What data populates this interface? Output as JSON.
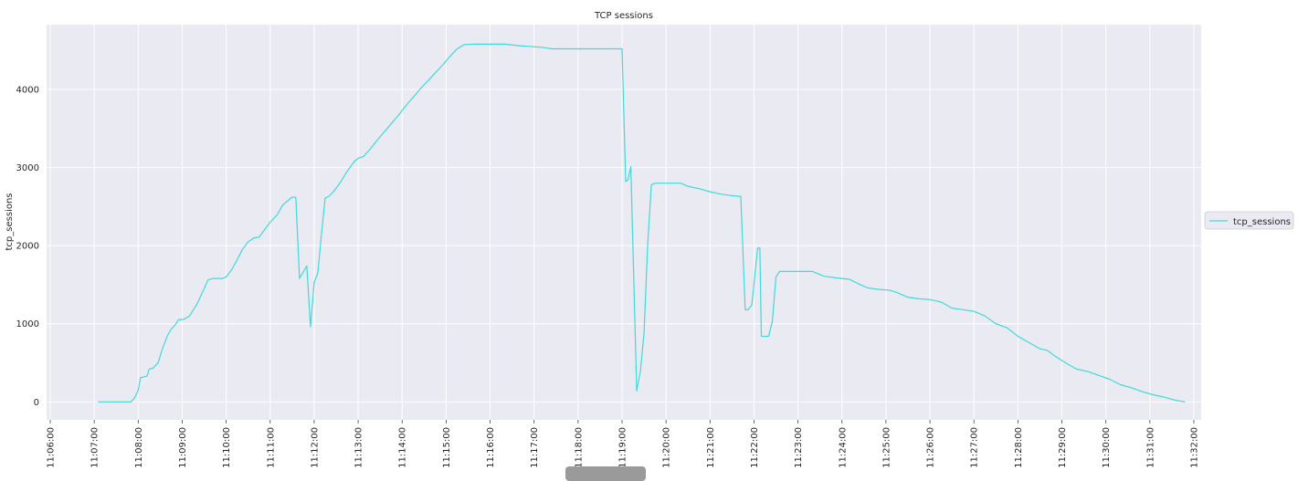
{
  "chart_data": {
    "type": "line",
    "title": "TCP sessions",
    "xlabel": "",
    "ylabel": "tcp_sessions",
    "grid": true,
    "legend_position": "right",
    "background_color": "#eaeaf2",
    "grid_color": "#ffffff",
    "series_color": "#41d9d9",
    "x_ticks": [
      "11:06:00",
      "11:07:00",
      "11:08:00",
      "11:09:00",
      "11:10:00",
      "11:11:00",
      "11:12:00",
      "11:13:00",
      "11:14:00",
      "11:15:00",
      "11:16:00",
      "11:17:00",
      "11:18:00",
      "11:19:00",
      "11:20:00",
      "11:21:00",
      "11:22:00",
      "11:23:00",
      "11:24:00",
      "11:25:00",
      "11:26:00",
      "11:27:00",
      "11:28:00",
      "11:29:00",
      "11:30:00",
      "11:31:00",
      "11:32:00"
    ],
    "xlim": [
      "11:05:55",
      "11:32:10"
    ],
    "y_ticks": [
      0,
      1000,
      2000,
      3000,
      4000
    ],
    "ylim": [
      -230,
      4830
    ],
    "series": [
      {
        "name": "tcp_sessions",
        "points": [
          [
            "11:07:05",
            0
          ],
          [
            "11:07:50",
            0
          ],
          [
            "11:07:55",
            50
          ],
          [
            "11:08:00",
            150
          ],
          [
            "11:08:03",
            310
          ],
          [
            "11:08:12",
            330
          ],
          [
            "11:08:15",
            420
          ],
          [
            "11:08:20",
            430
          ],
          [
            "11:08:27",
            500
          ],
          [
            "11:08:33",
            680
          ],
          [
            "11:08:40",
            850
          ],
          [
            "11:08:45",
            930
          ],
          [
            "11:08:50",
            980
          ],
          [
            "11:08:55",
            1050
          ],
          [
            "11:09:03",
            1060
          ],
          [
            "11:09:10",
            1100
          ],
          [
            "11:09:20",
            1250
          ],
          [
            "11:09:30",
            1450
          ],
          [
            "11:09:35",
            1560
          ],
          [
            "11:09:42",
            1580
          ],
          [
            "11:09:55",
            1580
          ],
          [
            "11:10:00",
            1600
          ],
          [
            "11:10:08",
            1700
          ],
          [
            "11:10:15",
            1820
          ],
          [
            "11:10:22",
            1950
          ],
          [
            "11:10:30",
            2050
          ],
          [
            "11:10:38",
            2100
          ],
          [
            "11:10:45",
            2110
          ],
          [
            "11:10:52",
            2200
          ],
          [
            "11:11:00",
            2300
          ],
          [
            "11:11:10",
            2400
          ],
          [
            "11:11:17",
            2520
          ],
          [
            "11:11:22",
            2560
          ],
          [
            "11:11:30",
            2620
          ],
          [
            "11:11:35",
            2620
          ],
          [
            "11:11:40",
            1580
          ],
          [
            "11:11:50",
            1740
          ],
          [
            "11:11:55",
            960
          ],
          [
            "11:12:00",
            1530
          ],
          [
            "11:12:05",
            1650
          ],
          [
            "11:12:10",
            2150
          ],
          [
            "11:12:15",
            2610
          ],
          [
            "11:12:20",
            2630
          ],
          [
            "11:12:27",
            2700
          ],
          [
            "11:12:35",
            2800
          ],
          [
            "11:12:45",
            2950
          ],
          [
            "11:12:55",
            3080
          ],
          [
            "11:13:00",
            3120
          ],
          [
            "11:13:07",
            3140
          ],
          [
            "11:13:15",
            3220
          ],
          [
            "11:13:25",
            3340
          ],
          [
            "11:13:35",
            3450
          ],
          [
            "11:13:45",
            3560
          ],
          [
            "11:13:55",
            3670
          ],
          [
            "11:14:05",
            3790
          ],
          [
            "11:14:15",
            3900
          ],
          [
            "11:14:25",
            4010
          ],
          [
            "11:14:35",
            4110
          ],
          [
            "11:14:45",
            4210
          ],
          [
            "11:14:55",
            4310
          ],
          [
            "11:15:05",
            4420
          ],
          [
            "11:15:15",
            4520
          ],
          [
            "11:15:25",
            4575
          ],
          [
            "11:15:40",
            4580
          ],
          [
            "11:16:20",
            4580
          ],
          [
            "11:16:40",
            4560
          ],
          [
            "11:16:55",
            4550
          ],
          [
            "11:17:10",
            4540
          ],
          [
            "11:17:25",
            4520
          ],
          [
            "11:18:00",
            4520
          ],
          [
            "11:18:30",
            4520
          ],
          [
            "11:19:00",
            4520
          ],
          [
            "11:19:05",
            2820
          ],
          [
            "11:19:08",
            2840
          ],
          [
            "11:19:12",
            3010
          ],
          [
            "11:19:20",
            140
          ],
          [
            "11:19:25",
            390
          ],
          [
            "11:19:30",
            880
          ],
          [
            "11:19:35",
            2020
          ],
          [
            "11:19:40",
            2780
          ],
          [
            "11:19:45",
            2800
          ],
          [
            "11:20:00",
            2800
          ],
          [
            "11:20:20",
            2800
          ],
          [
            "11:20:30",
            2760
          ],
          [
            "11:20:45",
            2730
          ],
          [
            "11:21:00",
            2690
          ],
          [
            "11:21:15",
            2660
          ],
          [
            "11:21:30",
            2640
          ],
          [
            "11:21:42",
            2630
          ],
          [
            "11:21:48",
            1180
          ],
          [
            "11:21:52",
            1180
          ],
          [
            "11:21:57",
            1240
          ],
          [
            "11:22:05",
            1970
          ],
          [
            "11:22:08",
            1970
          ],
          [
            "11:22:10",
            840
          ],
          [
            "11:22:20",
            840
          ],
          [
            "11:22:25",
            1030
          ],
          [
            "11:22:30",
            1600
          ],
          [
            "11:22:35",
            1670
          ],
          [
            "11:22:45",
            1670
          ],
          [
            "11:23:20",
            1670
          ],
          [
            "11:23:35",
            1610
          ],
          [
            "11:23:50",
            1590
          ],
          [
            "11:24:10",
            1570
          ],
          [
            "11:24:25",
            1500
          ],
          [
            "11:24:35",
            1460
          ],
          [
            "11:24:50",
            1440
          ],
          [
            "11:25:05",
            1430
          ],
          [
            "11:25:15",
            1400
          ],
          [
            "11:25:30",
            1340
          ],
          [
            "11:25:45",
            1320
          ],
          [
            "11:26:00",
            1310
          ],
          [
            "11:26:15",
            1280
          ],
          [
            "11:26:30",
            1200
          ],
          [
            "11:26:45",
            1180
          ],
          [
            "11:27:00",
            1160
          ],
          [
            "11:27:15",
            1100
          ],
          [
            "11:27:30",
            1000
          ],
          [
            "11:27:45",
            950
          ],
          [
            "11:28:00",
            840
          ],
          [
            "11:28:15",
            760
          ],
          [
            "11:28:30",
            680
          ],
          [
            "11:28:40",
            660
          ],
          [
            "11:28:50",
            590
          ],
          [
            "11:29:05",
            500
          ],
          [
            "11:29:20",
            420
          ],
          [
            "11:29:35",
            390
          ],
          [
            "11:29:50",
            340
          ],
          [
            "11:30:05",
            290
          ],
          [
            "11:30:20",
            220
          ],
          [
            "11:30:35",
            180
          ],
          [
            "11:30:50",
            130
          ],
          [
            "11:31:05",
            90
          ],
          [
            "11:31:20",
            60
          ],
          [
            "11:31:35",
            20
          ],
          [
            "11:31:48",
            0
          ]
        ]
      }
    ]
  }
}
